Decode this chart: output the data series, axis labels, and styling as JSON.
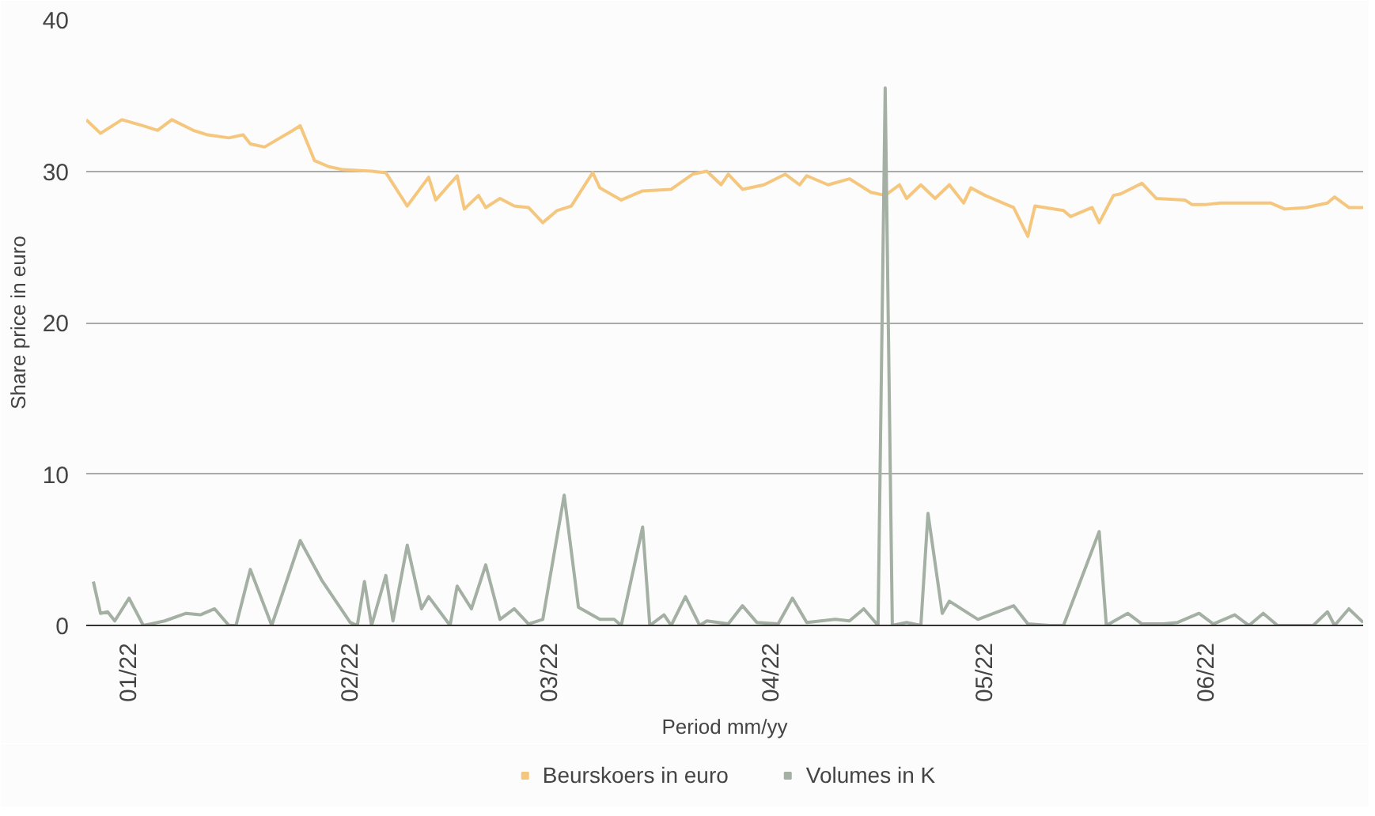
{
  "chart_data": {
    "type": "line",
    "xlabel": "Period mm/yy",
    "ylabel": "Share price in euro",
    "xlim": [
      "2021-12-26",
      "2022-06-23"
    ],
    "ylim": [
      0,
      40
    ],
    "yticks": [
      0,
      10,
      20,
      30,
      40
    ],
    "xticks": [
      {
        "value": "2022-01-01",
        "label": "01/22"
      },
      {
        "value": "2022-02-01",
        "label": "02/22"
      },
      {
        "value": "2022-03-01",
        "label": "03/22"
      },
      {
        "value": "2022-04-01",
        "label": "04/22"
      },
      {
        "value": "2022-05-01",
        "label": "05/22"
      },
      {
        "value": "2022-06-01",
        "label": "06/22"
      }
    ],
    "grid": "y",
    "legend": "bottom",
    "series": [
      {
        "name": "Beurskoers in euro",
        "color": "#f5c77e",
        "x": [
          "2021-12-26",
          "2021-12-28",
          "2021-12-31",
          "2022-01-03",
          "2022-01-05",
          "2022-01-07",
          "2022-01-10",
          "2022-01-12",
          "2022-01-15",
          "2022-01-17",
          "2022-01-18",
          "2022-01-20",
          "2022-01-24",
          "2022-01-25",
          "2022-01-27",
          "2022-01-29",
          "2022-01-31",
          "2022-02-04",
          "2022-02-06",
          "2022-02-09",
          "2022-02-12",
          "2022-02-13",
          "2022-02-16",
          "2022-02-17",
          "2022-02-19",
          "2022-02-20",
          "2022-02-22",
          "2022-02-24",
          "2022-02-26",
          "2022-02-28",
          "2022-03-02",
          "2022-03-04",
          "2022-03-07",
          "2022-03-08",
          "2022-03-11",
          "2022-03-14",
          "2022-03-18",
          "2022-03-21",
          "2022-03-23",
          "2022-03-25",
          "2022-03-26",
          "2022-03-28",
          "2022-03-31",
          "2022-04-03",
          "2022-04-05",
          "2022-04-06",
          "2022-04-09",
          "2022-04-12",
          "2022-04-15",
          "2022-04-17",
          "2022-04-19",
          "2022-04-20",
          "2022-04-22",
          "2022-04-24",
          "2022-04-26",
          "2022-04-28",
          "2022-04-29",
          "2022-05-01",
          "2022-05-05",
          "2022-05-07",
          "2022-05-08",
          "2022-05-12",
          "2022-05-13",
          "2022-05-16",
          "2022-05-17",
          "2022-05-19",
          "2022-05-20",
          "2022-05-23",
          "2022-05-25",
          "2022-05-29",
          "2022-05-30",
          "2022-06-01",
          "2022-06-03",
          "2022-06-10",
          "2022-06-12",
          "2022-06-15",
          "2022-06-18",
          "2022-06-19",
          "2022-06-21",
          "2022-06-23"
        ],
        "values": [
          33.4,
          32.5,
          33.4,
          33.0,
          32.7,
          33.4,
          32.7,
          32.4,
          32.2,
          32.4,
          31.8,
          31.6,
          32.7,
          33.0,
          30.7,
          30.3,
          30.1,
          30.0,
          29.9,
          27.7,
          29.6,
          28.1,
          29.7,
          27.5,
          28.4,
          27.6,
          28.2,
          27.7,
          27.6,
          26.6,
          27.4,
          27.7,
          29.9,
          28.9,
          28.1,
          28.7,
          28.8,
          29.8,
          30.0,
          29.1,
          29.8,
          28.8,
          29.1,
          29.8,
          29.1,
          29.7,
          29.1,
          29.5,
          28.6,
          28.4,
          29.1,
          28.2,
          29.1,
          28.2,
          29.1,
          27.9,
          28.9,
          28.4,
          27.6,
          25.7,
          27.7,
          27.4,
          27.0,
          27.6,
          26.6,
          28.4,
          28.5,
          29.2,
          28.2,
          28.1,
          27.8,
          27.8,
          27.9,
          27.9,
          27.5,
          27.6,
          27.9,
          28.3,
          27.6,
          27.6
        ]
      },
      {
        "name": "Volumes in K",
        "color": "#a3b0a3",
        "x": [
          "2021-12-27",
          "2021-12-28",
          "2021-12-29",
          "2021-12-30",
          "2022-01-01",
          "2022-01-03",
          "2022-01-04",
          "2022-01-06",
          "2022-01-09",
          "2022-01-11",
          "2022-01-13",
          "2022-01-15",
          "2022-01-16",
          "2022-01-18",
          "2022-01-21",
          "2022-01-25",
          "2022-01-28",
          "2022-02-01",
          "2022-02-02",
          "2022-02-03",
          "2022-02-04",
          "2022-02-06",
          "2022-02-07",
          "2022-02-09",
          "2022-02-11",
          "2022-02-12",
          "2022-02-15",
          "2022-02-16",
          "2022-02-18",
          "2022-02-20",
          "2022-02-22",
          "2022-02-24",
          "2022-02-26",
          "2022-02-28",
          "2022-03-03",
          "2022-03-05",
          "2022-03-08",
          "2022-03-10",
          "2022-03-11",
          "2022-03-14",
          "2022-03-15",
          "2022-03-17",
          "2022-03-18",
          "2022-03-20",
          "2022-03-22",
          "2022-03-23",
          "2022-03-26",
          "2022-03-28",
          "2022-03-30",
          "2022-04-02",
          "2022-04-04",
          "2022-04-06",
          "2022-04-10",
          "2022-04-12",
          "2022-04-14",
          "2022-04-16",
          "2022-04-17",
          "2022-04-18",
          "2022-04-20",
          "2022-04-22",
          "2022-04-23",
          "2022-04-25",
          "2022-04-26",
          "2022-04-29",
          "2022-04-30",
          "2022-05-05",
          "2022-05-07",
          "2022-05-10",
          "2022-05-12",
          "2022-05-17",
          "2022-05-18",
          "2022-05-21",
          "2022-05-23",
          "2022-05-26",
          "2022-05-28",
          "2022-05-31",
          "2022-06-02",
          "2022-06-05",
          "2022-06-07",
          "2022-06-09",
          "2022-06-11",
          "2022-06-16",
          "2022-06-18",
          "2022-06-19",
          "2022-06-21",
          "2022-06-23"
        ],
        "values": [
          2.9,
          0.8,
          0.9,
          0.3,
          1.8,
          0,
          0.1,
          0.3,
          0.8,
          0.7,
          1.1,
          0,
          0,
          3.7,
          0,
          5.6,
          3.0,
          0.2,
          0,
          2.9,
          0,
          3.3,
          0.3,
          5.3,
          1.1,
          1.9,
          0,
          2.6,
          1.1,
          4.0,
          0.4,
          1.1,
          0.1,
          0.4,
          8.6,
          1.2,
          0.4,
          0.4,
          0,
          6.5,
          0,
          0.7,
          0,
          1.9,
          0,
          0.3,
          0.1,
          1.3,
          0.2,
          0.1,
          1.8,
          0.2,
          0.4,
          0.3,
          1.1,
          0,
          35.5,
          0,
          0.2,
          0,
          7.4,
          0.8,
          1.6,
          0.7,
          0.4,
          1.3,
          0.1,
          0,
          0,
          6.2,
          0,
          0.8,
          0.1,
          0.1,
          0.2,
          0.8,
          0.1,
          0.7,
          0,
          0.8,
          0,
          0,
          0.9,
          0,
          1.1,
          0.2
        ]
      }
    ]
  }
}
